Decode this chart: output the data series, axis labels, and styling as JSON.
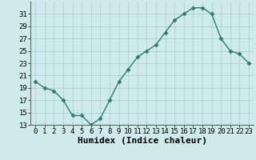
{
  "xlabel": "Humidex (Indice chaleur)",
  "x": [
    0,
    1,
    2,
    3,
    4,
    5,
    6,
    7,
    8,
    9,
    10,
    11,
    12,
    13,
    14,
    15,
    16,
    17,
    18,
    19,
    20,
    21,
    22,
    23
  ],
  "y": [
    20,
    19,
    18.5,
    17,
    14.5,
    14.5,
    13,
    14,
    17,
    20,
    22,
    24,
    25,
    26,
    28,
    30,
    31,
    32,
    32,
    31,
    27,
    25,
    24.5,
    23
  ],
  "line_color": "#2e7d6e",
  "marker": "D",
  "marker_size": 2.5,
  "bg_color": "#ceeaea",
  "grid_color": "#aacccc",
  "ylim": [
    13,
    33
  ],
  "yticks": [
    13,
    15,
    17,
    19,
    21,
    23,
    25,
    27,
    29,
    31
  ],
  "xlim": [
    -0.5,
    23.5
  ],
  "tick_fontsize": 6.5,
  "xlabel_fontsize": 8
}
